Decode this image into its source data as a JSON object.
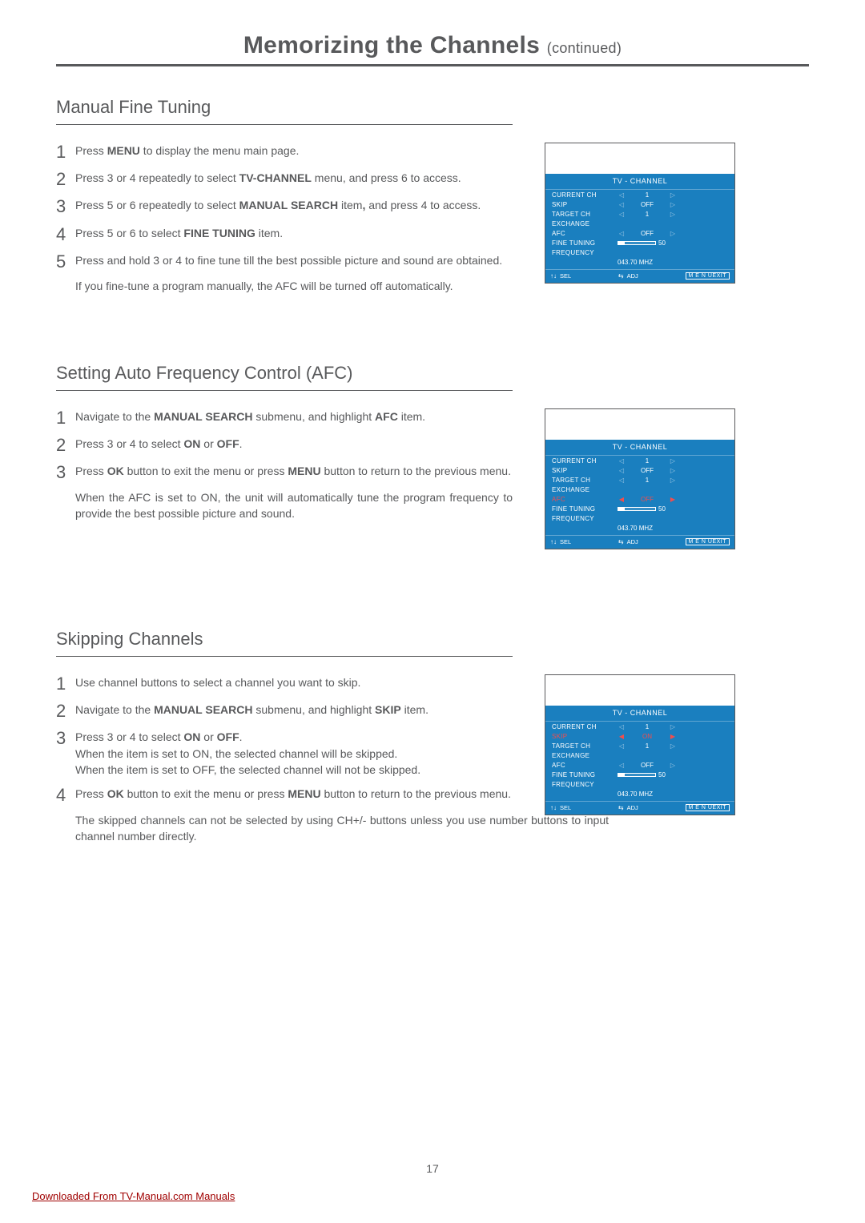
{
  "page": {
    "title_main": "Memorizing the Channels",
    "title_cont": "(continued)",
    "page_number": "17",
    "download_text": "Downloaded From TV-Manual.com Manuals"
  },
  "colors": {
    "text": "#58595b",
    "osd_bg": "#1a7fbf",
    "highlight": "#f04e4e",
    "link": "#a00000"
  },
  "sections": {
    "manual_fine": {
      "heading": "Manual Fine Tuning",
      "steps": {
        "s1": {
          "num": "1",
          "html": "Press <span class='em'>MENU</span> to display the menu main page."
        },
        "s2": {
          "num": "2",
          "html": "Press 3 or 4 repeatedly to select <span class='em'>TV-CHANNEL</span> menu, and press 6 to access."
        },
        "s3": {
          "num": "3",
          "html": "Press 5 or 6 repeatedly to select <span class='em'>MANUAL SEARCH</span> item<span class='em'>,</span> and press 4 to access."
        },
        "s4": {
          "num": "4",
          "html": "Press 5 or 6 to select <span class='em'>FINE TUNING</span> item."
        },
        "s5": {
          "num": "5",
          "html": "Press and hold 3 or 4 to fine tune till the best possible picture and sound are obtained.",
          "note": "If you fine-tune a program manually, the AFC will be turned off automatically."
        }
      }
    },
    "afc": {
      "heading": "Setting Auto Frequency Control (AFC)",
      "steps": {
        "s1": {
          "num": "1",
          "html": "Navigate to the <span class='em'>MANUAL SEARCH</span> submenu, and highlight <span class='em'>AFC</span> item."
        },
        "s2": {
          "num": "2",
          "html": "Press 3 or 4 to select <span class='em'>ON</span> or <span class='em'>OFF</span>."
        },
        "s3": {
          "num": "3",
          "html": "Press <span class='em'>OK</span> button to exit the menu or press <span class='em'>MENU</span> button to return to the previous menu.",
          "note": "When the AFC is set to ON, the unit will automatically tune the program frequency to provide the best possible picture and sound."
        }
      }
    },
    "skip": {
      "heading": "Skipping Channels",
      "steps": {
        "s1": {
          "num": "1",
          "html": "Use channel buttons to select a channel you want to skip."
        },
        "s2": {
          "num": "2",
          "html": "Navigate to the <span class='em'>MANUAL SEARCH</span> submenu, and highlight <span class='em'>SKIP</span> item."
        },
        "s3": {
          "num": "3",
          "html": "Press 3 or 4 to select <span class='em'>ON</span> or <span class='em'>OFF</span>.<br>When the item is set to ON, the selected channel will be skipped.<br>When the item is set to OFF, the selected channel will not  be skipped."
        },
        "s4": {
          "num": "4",
          "html": "Press <span class='em'>OK</span> button to exit the menu  or press <span class='em'>MENU</span> button to return to the previous menu.",
          "note": "The skipped channels can not be selected by using CH+/- buttons unless you use number buttons to input channel number directly."
        }
      }
    }
  },
  "osd": {
    "title": "TV - CHANNEL",
    "labels": {
      "current": "CURRENT CH",
      "skip": "SKIP",
      "target": "TARGET CH",
      "exchange": "EXCHANGE",
      "afc": "AFC",
      "fine": "FINE TUNING",
      "freq": "FREQUENCY"
    },
    "values": {
      "ch": "1",
      "off": "OFF",
      "on": "ON",
      "freq": "043.70 MHZ",
      "ft": "50"
    },
    "footer": {
      "sel": "SEL",
      "adj": "ADJ",
      "exit": "M E N UEXIT"
    },
    "arrows": {
      "left": "◁",
      "right": "▷",
      "left_red": "◀",
      "right_red": "▶",
      "updown": "↑↓",
      "lr": "⇆"
    }
  }
}
